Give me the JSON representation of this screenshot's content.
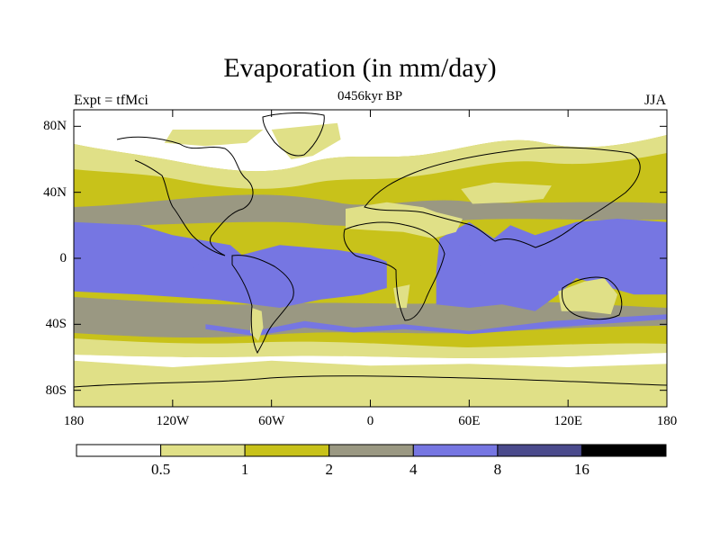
{
  "title": "Evaporation (in mm/day)",
  "subtitle": "0456kyr BP",
  "left_label": "Expt = tfMci",
  "right_label": "JJA",
  "map": {
    "projection": "cylindrical-equidistant",
    "lon_range": [
      -180,
      180
    ],
    "lat_range": [
      -90,
      90
    ],
    "y_ticks": [
      {
        "label": "80N",
        "lat": 80
      },
      {
        "label": "40N",
        "lat": 40
      },
      {
        "label": "0",
        "lat": 0
      },
      {
        "label": "40S",
        "lat": -40
      },
      {
        "label": "80S",
        "lat": -80
      }
    ],
    "x_ticks": [
      {
        "label": "180",
        "lon": -180
      },
      {
        "label": "120W",
        "lon": -120
      },
      {
        "label": "60W",
        "lon": -60
      },
      {
        "label": "0",
        "lon": 0
      },
      {
        "label": "60E",
        "lon": 60
      },
      {
        "label": "120E",
        "lon": 120
      },
      {
        "label": "180",
        "lon": 180
      }
    ]
  },
  "colorbar": {
    "colors": [
      "#ffffff",
      "#e0e087",
      "#c8c21a",
      "#9a9882",
      "#7676e2",
      "#4a4a8c",
      "#000000"
    ],
    "labels": [
      "0.5",
      "1",
      "2",
      "4",
      "8",
      "16"
    ]
  },
  "regions": [
    {
      "name": "tropical-ocean",
      "level": 4,
      "lonlat": [
        [
          -180,
          22
        ],
        [
          -140,
          20
        ],
        [
          -120,
          14
        ],
        [
          -85,
          8
        ],
        [
          -78,
          2
        ],
        [
          -55,
          8
        ],
        [
          -20,
          5
        ],
        [
          0,
          2
        ],
        [
          10,
          -2
        ],
        [
          10,
          -18
        ],
        [
          -5,
          -22
        ],
        [
          -30,
          -25
        ],
        [
          -55,
          -30
        ],
        [
          -95,
          -25
        ],
        [
          -140,
          -22
        ],
        [
          -180,
          -20
        ]
      ]
    },
    {
      "name": "indian-pacific-ocean",
      "level": 4,
      "lonlat": [
        [
          42,
          12
        ],
        [
          60,
          22
        ],
        [
          75,
          12
        ],
        [
          85,
          20
        ],
        [
          100,
          14
        ],
        [
          125,
          22
        ],
        [
          150,
          24
        ],
        [
          180,
          22
        ],
        [
          180,
          -22
        ],
        [
          160,
          -22
        ],
        [
          125,
          -12
        ],
        [
          114,
          -22
        ],
        [
          100,
          -32
        ],
        [
          80,
          -28
        ],
        [
          60,
          -30
        ],
        [
          40,
          -28
        ],
        [
          40,
          -8
        ]
      ]
    },
    {
      "name": "southern-ocean-band",
      "level": 4,
      "lonlat": [
        [
          -100,
          -40
        ],
        [
          -70,
          -44
        ],
        [
          -40,
          -38
        ],
        [
          -10,
          -42
        ],
        [
          20,
          -40
        ],
        [
          60,
          -44
        ],
        [
          110,
          -38
        ],
        [
          180,
          -34
        ],
        [
          180,
          -37
        ],
        [
          110,
          -42
        ],
        [
          60,
          -46
        ],
        [
          20,
          -43
        ],
        [
          -10,
          -45
        ],
        [
          -40,
          -42
        ],
        [
          -70,
          -47
        ],
        [
          -100,
          -43
        ]
      ]
    },
    {
      "name": "greenland",
      "level": 0.5,
      "lonlat": [
        [
          -60,
          78
        ],
        [
          -20,
          82
        ],
        [
          -18,
          72
        ],
        [
          -35,
          62
        ],
        [
          -48,
          60
        ],
        [
          -55,
          68
        ]
      ]
    },
    {
      "name": "arctic-canada",
      "level": 0.5,
      "lonlat": [
        [
          -120,
          78
        ],
        [
          -65,
          78
        ],
        [
          -75,
          70
        ],
        [
          -100,
          68
        ],
        [
          -125,
          70
        ]
      ]
    },
    {
      "name": "sahara-arabia",
      "level": 0.5,
      "lonlat": [
        [
          -15,
          30
        ],
        [
          10,
          34
        ],
        [
          32,
          31
        ],
        [
          40,
          28
        ],
        [
          56,
          24
        ],
        [
          52,
          16
        ],
        [
          38,
          12
        ],
        [
          20,
          16
        ],
        [
          0,
          17
        ],
        [
          -15,
          18
        ]
      ]
    },
    {
      "name": "central-asia-desert",
      "level": 0.5,
      "lonlat": [
        [
          55,
          42
        ],
        [
          75,
          46
        ],
        [
          110,
          44
        ],
        [
          105,
          36
        ],
        [
          85,
          34
        ],
        [
          62,
          33
        ]
      ]
    },
    {
      "name": "southern-africa-desert",
      "level": 0.5,
      "lonlat": [
        [
          14,
          -18
        ],
        [
          24,
          -16
        ],
        [
          22,
          -30
        ],
        [
          16,
          -30
        ]
      ]
    },
    {
      "name": "australia-interior",
      "level": 0.5,
      "lonlat": [
        [
          114,
          -20
        ],
        [
          130,
          -14
        ],
        [
          142,
          -12
        ],
        [
          150,
          -22
        ],
        [
          146,
          -34
        ],
        [
          130,
          -32
        ],
        [
          116,
          -32
        ]
      ]
    },
    {
      "name": "patagonia",
      "level": 0.5,
      "lonlat": [
        [
          -72,
          -30
        ],
        [
          -66,
          -32
        ],
        [
          -65,
          -42
        ],
        [
          -68,
          -50
        ],
        [
          -73,
          -45
        ]
      ]
    },
    {
      "name": "antarctica",
      "level": 0.5,
      "lonlat": [
        [
          -180,
          -62
        ],
        [
          -120,
          -66
        ],
        [
          -60,
          -62
        ],
        [
          0,
          -65
        ],
        [
          60,
          -64
        ],
        [
          120,
          -66
        ],
        [
          180,
          -64
        ],
        [
          180,
          -90
        ],
        [
          -180,
          -90
        ]
      ]
    }
  ]
}
